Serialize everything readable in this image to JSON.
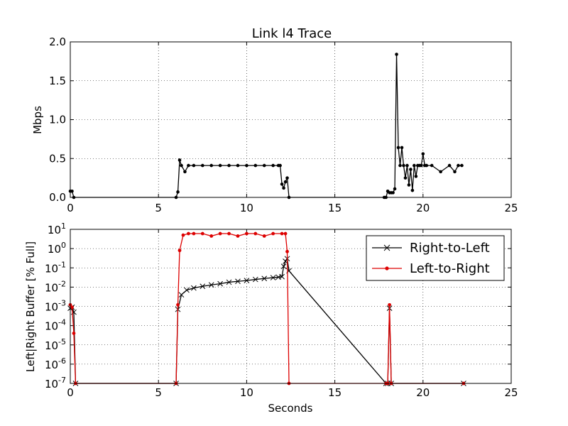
{
  "chart_data": [
    {
      "type": "line",
      "title": "Link l4 Trace",
      "xlabel": "",
      "ylabel": "Mbps",
      "xlim": [
        0,
        25
      ],
      "ylim": [
        0,
        2.0
      ],
      "xticks": [
        "0",
        "5",
        "10",
        "15",
        "20",
        "25"
      ],
      "yticks": [
        "0.0",
        "0.5",
        "1.0",
        "1.5",
        "2.0"
      ],
      "grid": true,
      "series": [
        {
          "color": "#000000",
          "marker": "dot",
          "x": [
            0.0,
            0.1,
            0.2,
            6.0,
            6.1,
            6.2,
            6.3,
            6.5,
            6.7,
            7.0,
            7.5,
            8.0,
            8.5,
            9.0,
            9.5,
            10.0,
            10.5,
            11.0,
            11.5,
            11.8,
            11.9,
            12.0,
            12.1,
            12.2,
            12.3,
            12.4,
            17.8,
            17.9,
            18.0,
            18.1,
            18.2,
            18.3,
            18.4,
            18.5,
            18.6,
            18.7,
            18.8,
            18.9,
            19.0,
            19.1,
            19.2,
            19.3,
            19.4,
            19.5,
            19.6,
            19.7,
            19.8,
            19.9,
            20.0,
            20.1,
            20.2,
            20.5,
            21.0,
            21.5,
            21.8,
            22.0,
            22.2
          ],
          "values": [
            0.08,
            0.08,
            0.0,
            0.0,
            0.07,
            0.48,
            0.41,
            0.33,
            0.41,
            0.41,
            0.41,
            0.41,
            0.41,
            0.41,
            0.41,
            0.41,
            0.41,
            0.41,
            0.41,
            0.41,
            0.41,
            0.17,
            0.12,
            0.2,
            0.25,
            0.0,
            0.0,
            0.0,
            0.08,
            0.06,
            0.06,
            0.06,
            0.11,
            1.84,
            0.64,
            0.41,
            0.64,
            0.41,
            0.25,
            0.41,
            0.16,
            0.36,
            0.09,
            0.41,
            0.27,
            0.41,
            0.41,
            0.41,
            0.56,
            0.41,
            0.41,
            0.41,
            0.33,
            0.41,
            0.33,
            0.41,
            0.41
          ]
        }
      ]
    },
    {
      "type": "line",
      "title": "",
      "xlabel": "Seconds",
      "ylabel": "Left|Right Buffer [% Full]",
      "xlim": [
        0,
        25
      ],
      "ylim": [
        1e-07,
        10
      ],
      "yscale": "log",
      "xticks": [
        "0",
        "5",
        "10",
        "15",
        "20",
        "25"
      ],
      "yticks": [
        {
          "base": "10",
          "exp": "1",
          "value": 10
        },
        {
          "base": "10",
          "exp": "0",
          "value": 1
        },
        {
          "base": "10",
          "exp": "-1",
          "value": 0.1
        },
        {
          "base": "10",
          "exp": "-2",
          "value": 0.01
        },
        {
          "base": "10",
          "exp": "-3",
          "value": 0.001
        },
        {
          "base": "10",
          "exp": "-4",
          "value": 0.0001
        },
        {
          "base": "10",
          "exp": "-5",
          "value": 1e-05
        },
        {
          "base": "10",
          "exp": "-6",
          "value": 1e-06
        },
        {
          "base": "10",
          "exp": "-7",
          "value": 1e-07
        }
      ],
      "grid": true,
      "legend": "top-right",
      "series": [
        {
          "name": "Right-to-Left",
          "color": "#000000",
          "marker": "x",
          "x": [
            0.0,
            0.1,
            0.2,
            0.3,
            6.0,
            6.1,
            6.3,
            6.6,
            7.0,
            7.5,
            8.0,
            8.5,
            9.0,
            9.5,
            10.0,
            10.5,
            11.0,
            11.5,
            11.8,
            12.0,
            12.1,
            12.2,
            12.3,
            12.4,
            17.9,
            18.0,
            18.1,
            18.2,
            22.3
          ],
          "values": [
            0.0008,
            0.0009,
            0.0005,
            1e-07,
            1e-07,
            0.0007,
            0.004,
            0.007,
            0.009,
            0.011,
            0.013,
            0.015,
            0.018,
            0.02,
            0.022,
            0.025,
            0.028,
            0.031,
            0.033,
            0.035,
            0.12,
            0.22,
            0.3,
            0.07,
            1e-07,
            1e-07,
            0.0008,
            1e-07,
            1e-07
          ]
        },
        {
          "name": "Left-to-Right",
          "color": "#dd0000",
          "marker": "dot",
          "x": [
            0.0,
            0.1,
            0.2,
            0.3,
            6.0,
            6.1,
            6.2,
            6.4,
            6.7,
            7.0,
            7.5,
            8.0,
            8.5,
            9.0,
            9.5,
            10.0,
            10.5,
            11.0,
            11.5,
            12.0,
            12.2,
            12.3,
            12.4,
            17.9,
            18.0,
            18.1,
            18.2,
            22.3
          ],
          "values": [
            0.0012,
            0.0009,
            4e-05,
            1e-07,
            1e-07,
            0.0012,
            0.8,
            5.0,
            6.0,
            6.0,
            6.0,
            4.5,
            6.0,
            6.0,
            4.5,
            6.0,
            6.0,
            4.5,
            6.0,
            6.0,
            6.0,
            0.7,
            1e-07,
            1e-07,
            1e-07,
            0.0012,
            1e-07,
            1e-07
          ]
        }
      ]
    }
  ]
}
